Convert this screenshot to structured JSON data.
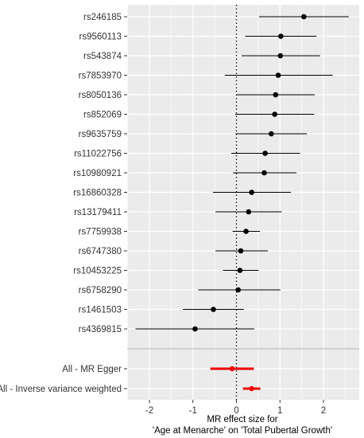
{
  "chart_data": {
    "type": "forest",
    "xlabel": [
      "MR effect size for",
      "'Age at Menarche' on 'Total Pubertal Growth'"
    ],
    "xlim": [
      -2.6,
      2.75
    ],
    "xticks": [
      -2,
      -1,
      0,
      1,
      2
    ],
    "reference_line": 0,
    "grid": true,
    "colors": {
      "panel": "#ebebeb",
      "grid": "#ffffff",
      "snp": "#000000",
      "summary": "#ee0000",
      "separator": "#b3b3b3"
    },
    "snps": [
      {
        "name": "rs246185",
        "estimate": 1.55,
        "lower": 0.52,
        "upper": 2.58
      },
      {
        "name": "rs9560113",
        "estimate": 1.02,
        "lower": 0.2,
        "upper": 1.84
      },
      {
        "name": "rs543874",
        "estimate": 1.01,
        "lower": 0.12,
        "upper": 1.92
      },
      {
        "name": "rs7853970",
        "estimate": 0.96,
        "lower": -0.27,
        "upper": 2.21
      },
      {
        "name": "rs8050136",
        "estimate": 0.9,
        "lower": 0.0,
        "upper": 1.8
      },
      {
        "name": "rs852069",
        "estimate": 0.88,
        "lower": -0.03,
        "upper": 1.79
      },
      {
        "name": "rs9635759",
        "estimate": 0.8,
        "lower": -0.02,
        "upper": 1.62
      },
      {
        "name": "rs11022756",
        "estimate": 0.66,
        "lower": -0.12,
        "upper": 1.46
      },
      {
        "name": "rs10980921",
        "estimate": 0.64,
        "lower": -0.08,
        "upper": 1.38
      },
      {
        "name": "rs16860328",
        "estimate": 0.35,
        "lower": -0.54,
        "upper": 1.25
      },
      {
        "name": "rs13179411",
        "estimate": 0.28,
        "lower": -0.48,
        "upper": 1.04
      },
      {
        "name": "rs7759938",
        "estimate": 0.22,
        "lower": -0.09,
        "upper": 0.54
      },
      {
        "name": "rs6747380",
        "estimate": 0.1,
        "lower": -0.48,
        "upper": 0.72
      },
      {
        "name": "rs10453225",
        "estimate": 0.08,
        "lower": -0.31,
        "upper": 0.51
      },
      {
        "name": "rs6758290",
        "estimate": 0.04,
        "lower": -0.88,
        "upper": 1.01
      },
      {
        "name": "rs1461503",
        "estimate": -0.53,
        "lower": -1.23,
        "upper": 0.17
      },
      {
        "name": "rs4369815",
        "estimate": -0.95,
        "lower": -2.32,
        "upper": 0.41
      }
    ],
    "summaries": [
      {
        "name": "All - MR Egger",
        "estimate": -0.1,
        "lower": -0.6,
        "upper": 0.4
      },
      {
        "name": "All - Inverse variance weighted",
        "estimate": 0.35,
        "lower": 0.15,
        "upper": 0.55
      }
    ]
  }
}
